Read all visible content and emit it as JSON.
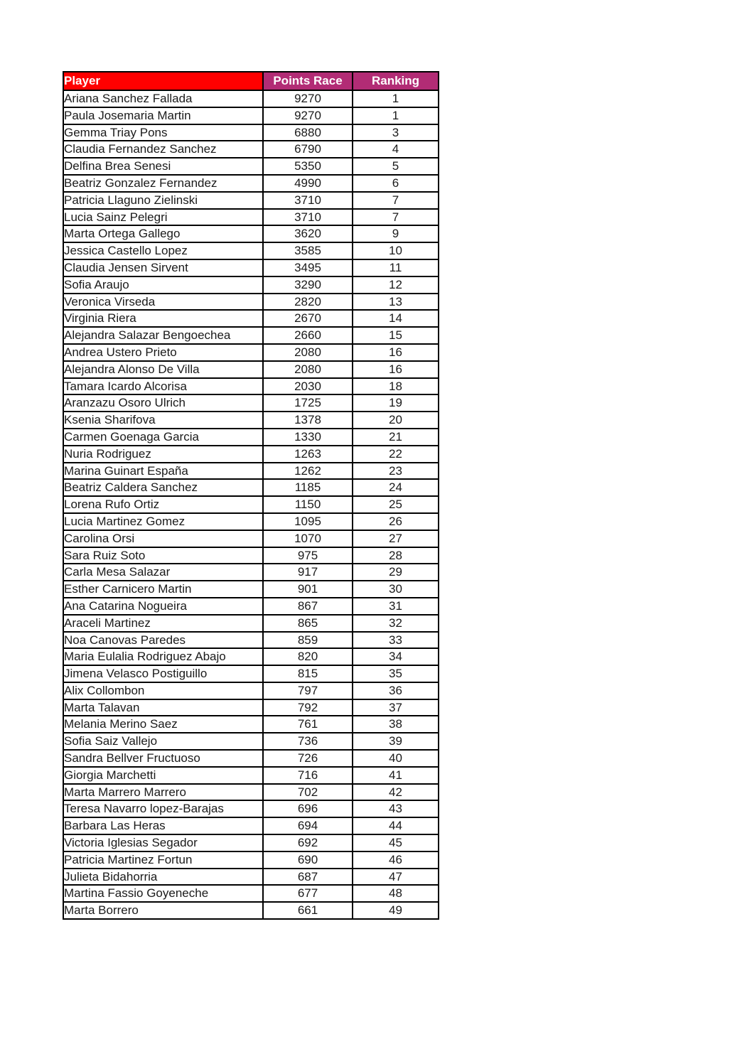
{
  "colors": {
    "page_background": "#ffffff",
    "player_header_bg": "#ff0000",
    "stats_header_bg": "#b22c75",
    "header_text": "#ffffff",
    "grid_border": "#000000",
    "row_text": "#1a1a1a",
    "row_bg": "#ffffff"
  },
  "table": {
    "columns": [
      {
        "key": "player",
        "label": "Player",
        "bg": "#ff0000"
      },
      {
        "key": "points",
        "label": "Points Race",
        "bg": "#b22c75"
      },
      {
        "key": "ranking",
        "label": "Ranking",
        "bg": "#b22c75"
      }
    ],
    "rows": [
      {
        "player": "Ariana Sanchez Fallada",
        "points": "9270",
        "ranking": "1"
      },
      {
        "player": "Paula Josemaria Martin",
        "points": "9270",
        "ranking": "1"
      },
      {
        "player": "Gemma Triay Pons",
        "points": "6880",
        "ranking": "3"
      },
      {
        "player": "Claudia Fernandez Sanchez",
        "points": "6790",
        "ranking": "4"
      },
      {
        "player": "Delfina Brea Senesi",
        "points": "5350",
        "ranking": "5"
      },
      {
        "player": "Beatriz Gonzalez Fernandez",
        "points": "4990",
        "ranking": "6"
      },
      {
        "player": "Patricia Llaguno Zielinski",
        "points": "3710",
        "ranking": "7"
      },
      {
        "player": "Lucia Sainz Pelegri",
        "points": "3710",
        "ranking": "7"
      },
      {
        "player": "Marta Ortega Gallego",
        "points": "3620",
        "ranking": "9"
      },
      {
        "player": "Jessica Castello Lopez",
        "points": "3585",
        "ranking": "10"
      },
      {
        "player": "Claudia Jensen Sirvent",
        "points": "3495",
        "ranking": "11"
      },
      {
        "player": "Sofia Araujo",
        "points": "3290",
        "ranking": "12"
      },
      {
        "player": "Veronica Virseda",
        "points": "2820",
        "ranking": "13"
      },
      {
        "player": "Virginia Riera",
        "points": "2670",
        "ranking": "14"
      },
      {
        "player": "Alejandra Salazar Bengoechea",
        "points": "2660",
        "ranking": "15"
      },
      {
        "player": "Andrea Ustero Prieto",
        "points": "2080",
        "ranking": "16"
      },
      {
        "player": "Alejandra Alonso De Villa",
        "points": "2080",
        "ranking": "16"
      },
      {
        "player": "Tamara Icardo Alcorisa",
        "points": "2030",
        "ranking": "18"
      },
      {
        "player": "Aranzazu Osoro Ulrich",
        "points": "1725",
        "ranking": "19"
      },
      {
        "player": "Ksenia Sharifova",
        "points": "1378",
        "ranking": "20"
      },
      {
        "player": "Carmen Goenaga Garcia",
        "points": "1330",
        "ranking": "21"
      },
      {
        "player": "Nuria Rodriguez",
        "points": "1263",
        "ranking": "22"
      },
      {
        "player": "Marina Guinart España",
        "points": "1262",
        "ranking": "23"
      },
      {
        "player": "Beatriz Caldera Sanchez",
        "points": "1185",
        "ranking": "24"
      },
      {
        "player": "Lorena Rufo Ortiz",
        "points": "1150",
        "ranking": "25"
      },
      {
        "player": "Lucia Martinez Gomez",
        "points": "1095",
        "ranking": "26"
      },
      {
        "player": "Carolina Orsi",
        "points": "1070",
        "ranking": "27"
      },
      {
        "player": "Sara Ruiz Soto",
        "points": "975",
        "ranking": "28"
      },
      {
        "player": "Carla Mesa Salazar",
        "points": "917",
        "ranking": "29"
      },
      {
        "player": "Esther Carnicero Martin",
        "points": "901",
        "ranking": "30"
      },
      {
        "player": "Ana Catarina Nogueira",
        "points": "867",
        "ranking": "31"
      },
      {
        "player": "Araceli Martinez",
        "points": "865",
        "ranking": "32"
      },
      {
        "player": "Noa Canovas Paredes",
        "points": "859",
        "ranking": "33"
      },
      {
        "player": "Maria Eulalia Rodriguez Abajo",
        "points": "820",
        "ranking": "34"
      },
      {
        "player": "Jimena Velasco Postiguillo",
        "points": "815",
        "ranking": "35"
      },
      {
        "player": "Alix Collombon",
        "points": "797",
        "ranking": "36"
      },
      {
        "player": "Marta Talavan",
        "points": "792",
        "ranking": "37"
      },
      {
        "player": "Melania Merino Saez",
        "points": "761",
        "ranking": "38"
      },
      {
        "player": "Sofia Saiz Vallejo",
        "points": "736",
        "ranking": "39"
      },
      {
        "player": "Sandra Bellver Fructuoso",
        "points": "726",
        "ranking": "40"
      },
      {
        "player": "Giorgia Marchetti",
        "points": "716",
        "ranking": "41"
      },
      {
        "player": "Marta Marrero Marrero",
        "points": "702",
        "ranking": "42"
      },
      {
        "player": "Teresa Navarro lopez-Barajas",
        "points": "696",
        "ranking": "43"
      },
      {
        "player": "Barbara Las Heras",
        "points": "694",
        "ranking": "44"
      },
      {
        "player": "Victoria Iglesias Segador",
        "points": "692",
        "ranking": "45"
      },
      {
        "player": "Patricia Martinez Fortun",
        "points": "690",
        "ranking": "46"
      },
      {
        "player": "Julieta Bidahorria",
        "points": "687",
        "ranking": "47"
      },
      {
        "player": "Martina Fassio Goyeneche",
        "points": "677",
        "ranking": "48"
      },
      {
        "player": "Marta Borrero",
        "points": "661",
        "ranking": "49"
      }
    ]
  }
}
